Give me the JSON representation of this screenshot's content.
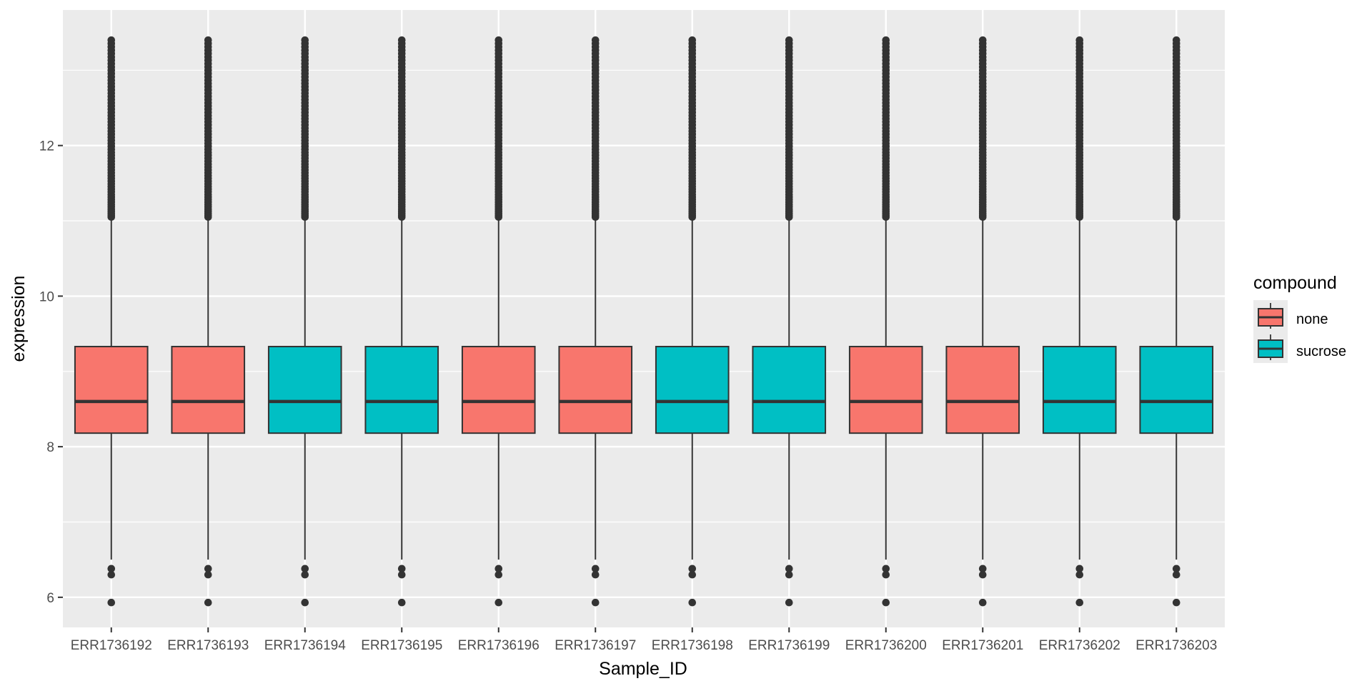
{
  "chart_data": {
    "type": "boxplot",
    "xlabel": "Sample_ID",
    "ylabel": "expression",
    "ylim": [
      5.6,
      13.8
    ],
    "yticks": [
      6,
      8,
      10,
      12
    ],
    "grid": true,
    "legend": {
      "title": "compound",
      "position": "right",
      "entries": [
        {
          "label": "none",
          "color": "#F8766D"
        },
        {
          "label": "sucrose",
          "color": "#00BFC4"
        }
      ]
    },
    "categories": [
      "ERR1736192",
      "ERR1736193",
      "ERR1736194",
      "ERR1736195",
      "ERR1736196",
      "ERR1736197",
      "ERR1736198",
      "ERR1736199",
      "ERR1736200",
      "ERR1736201",
      "ERR1736202",
      "ERR1736203"
    ],
    "groups": [
      "none",
      "none",
      "sucrose",
      "sucrose",
      "none",
      "none",
      "sucrose",
      "sucrose",
      "none",
      "none",
      "sucrose",
      "sucrose"
    ],
    "box_stats": {
      "q1": 8.18,
      "median": 8.6,
      "q3": 9.33,
      "whisker_low": 6.5,
      "whisker_high": 11.05
    },
    "outliers_high_range": [
      11.05,
      13.4
    ],
    "outliers_low": [
      5.93,
      6.3,
      6.38
    ]
  }
}
